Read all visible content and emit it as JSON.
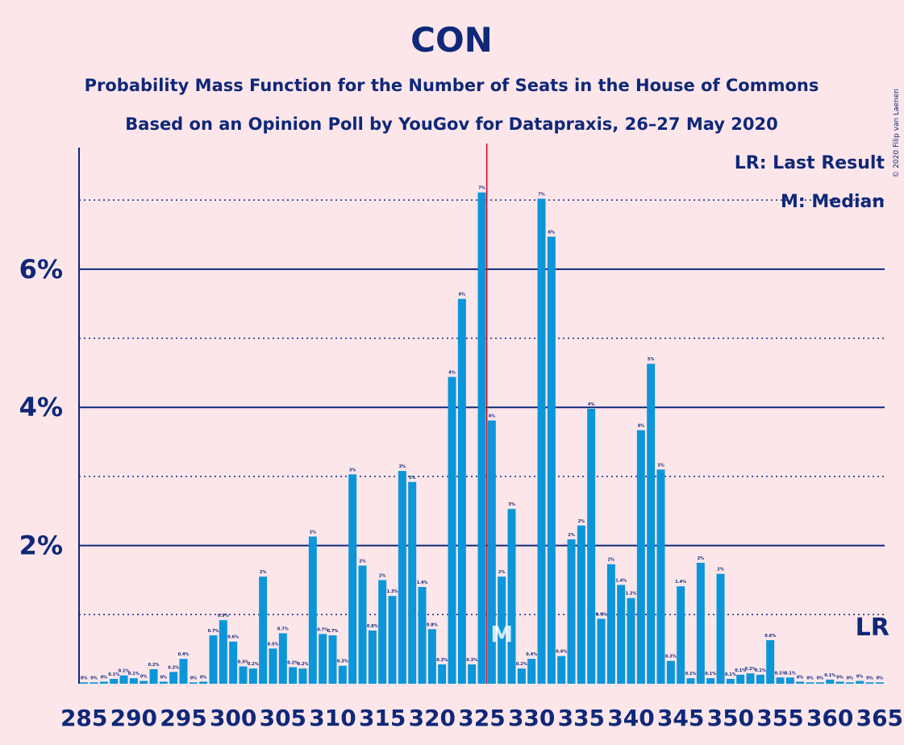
{
  "chart_data": {
    "type": "bar",
    "title": "CON",
    "subtitle": "Probability Mass Function for the Number of Seats in the House of Commons",
    "subtitle2": "Based on an Opinion Poll by YouGov for Datapraxis, 26–27 May 2020",
    "copyright": "© 2020 Filip van Laenen",
    "legend": [
      "LR: Last Result",
      "M: Median"
    ],
    "color": "#0b96d9",
    "x": [
      285,
      286,
      287,
      288,
      289,
      290,
      291,
      292,
      293,
      294,
      295,
      296,
      297,
      298,
      299,
      300,
      301,
      302,
      303,
      304,
      305,
      306,
      307,
      308,
      309,
      310,
      311,
      312,
      313,
      314,
      315,
      316,
      317,
      318,
      319,
      320,
      321,
      322,
      323,
      324,
      325,
      326,
      327,
      328,
      329,
      330,
      331,
      332,
      333,
      334,
      335,
      336,
      337,
      338,
      339,
      340,
      341,
      342,
      343,
      344,
      345,
      346,
      347,
      348,
      349,
      350,
      351,
      352,
      353,
      354,
      355,
      356,
      357,
      358,
      359,
      360,
      361,
      362,
      363,
      364,
      365
    ],
    "values": [
      0.02,
      0.02,
      0.03,
      0.07,
      0.12,
      0.08,
      0.04,
      0.21,
      0.03,
      0.17,
      0.36,
      0.02,
      0.03,
      0.7,
      0.92,
      0.61,
      0.25,
      0.22,
      1.55,
      0.51,
      0.73,
      0.24,
      0.22,
      2.13,
      0.72,
      0.7,
      0.26,
      3.03,
      1.71,
      0.77,
      1.5,
      1.27,
      3.08,
      2.92,
      1.4,
      0.79,
      0.28,
      4.44,
      5.57,
      0.28,
      7.11,
      3.81,
      1.55,
      2.53,
      0.22,
      0.36,
      7.02,
      6.47,
      0.4,
      2.09,
      2.29,
      3.98,
      0.94,
      1.73,
      1.43,
      1.24,
      3.67,
      4.63,
      3.1,
      0.33,
      1.41,
      0.08,
      1.75,
      0.08,
      1.59,
      0.07,
      0.13,
      0.15,
      0.13,
      0.63,
      0.09,
      0.09,
      0.03,
      0.02,
      0.02,
      0.06,
      0.03,
      0.02,
      0.04,
      0.02,
      0.02
    ],
    "value_labels": [
      "0%",
      "0%",
      "0%",
      "0.1%",
      "0.1%",
      "0.1%",
      "0%",
      "0.2%",
      "0%",
      "0.2%",
      "0.4%",
      "0%",
      "0%",
      "0.7%",
      "0.9%",
      "0.6%",
      "0.3%",
      "0.2%",
      "2%",
      "0.5%",
      "0.7%",
      "0.2%",
      "0.2%",
      "2%",
      "0.7%",
      "0.7%",
      "0.3%",
      "3%",
      "2%",
      "0.8%",
      "2%",
      "1.3%",
      "3%",
      "3%",
      "1.4%",
      "0.8%",
      "0.3%",
      "4%",
      "6%",
      "0.3%",
      "7%",
      "4%",
      "2%",
      "3%",
      "0.2%",
      "0.4%",
      "7%",
      "6%",
      "0.4%",
      "2%",
      "2%",
      "4%",
      "0.9%",
      "2%",
      "1.4%",
      "1.2%",
      "4%",
      "5%",
      "3%",
      "0.3%",
      "1.4%",
      "0.1%",
      "2%",
      "0.1%",
      "2%",
      "0.1%",
      "0.1%",
      "0.2%",
      "0.1%",
      "0.6%",
      "0.1%",
      "0.1%",
      "0%",
      "0%",
      "0%",
      "0.1%",
      "0%",
      "0%",
      "0%",
      "0%",
      "0%"
    ],
    "xticks": [
      285,
      290,
      295,
      300,
      305,
      310,
      315,
      320,
      325,
      330,
      335,
      340,
      345,
      350,
      355,
      360,
      365
    ],
    "xlim": [
      284.5,
      365.5
    ],
    "ylim": [
      0,
      7.76
    ],
    "yticks": [
      {
        "value": 2,
        "label": "2%"
      },
      {
        "value": 4,
        "label": "4%"
      },
      {
        "value": 6,
        "label": "6%"
      }
    ],
    "minor_yticks": [
      1,
      3,
      5,
      7
    ],
    "majority": 326,
    "median": 327,
    "median_marker": "M",
    "last_result": 365,
    "last_result_marker": "LR",
    "grid": true
  }
}
